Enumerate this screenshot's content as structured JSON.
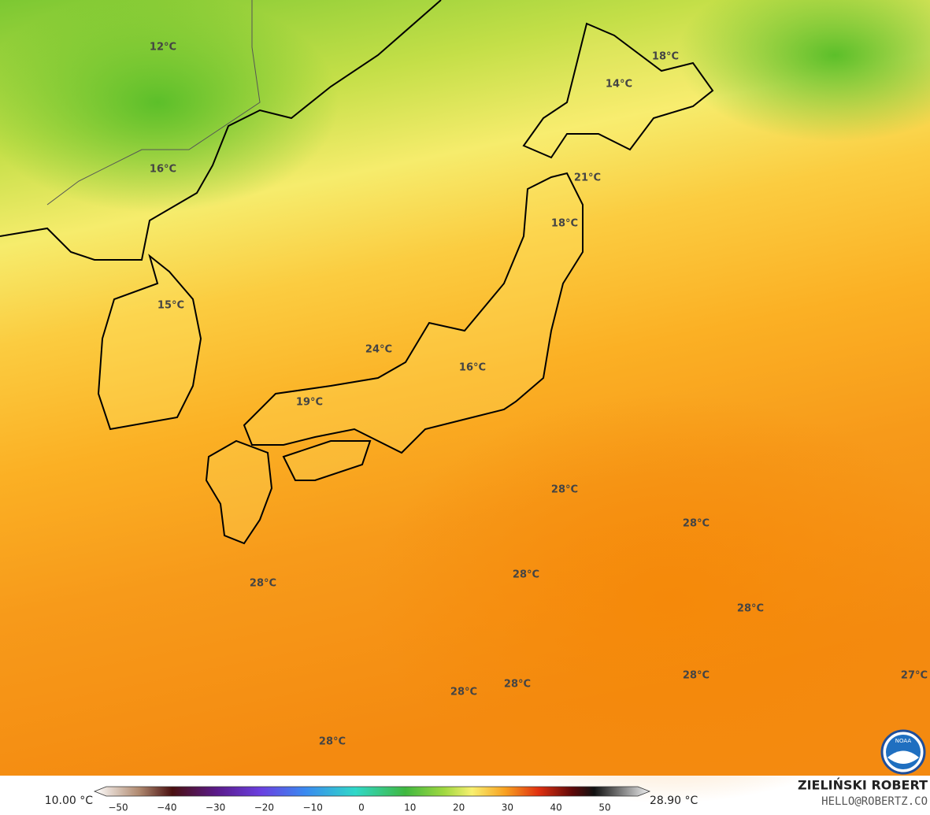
{
  "map": {
    "labels": [
      "12°C",
      "16°C",
      "15°C",
      "18°C",
      "14°C",
      "21°C",
      "18°C",
      "24°C",
      "16°C",
      "19°C",
      "28°C",
      "28°C",
      "28°C",
      "28°C",
      "28°C",
      "28°C",
      "27°C",
      "28°C",
      "28°C",
      "28°C"
    ]
  },
  "legend": {
    "min": "10.00 °C",
    "max": "28.90 °C",
    "ticks": [
      "−50",
      "−40",
      "−30",
      "−20",
      "−10",
      "0",
      "10",
      "20",
      "30",
      "40",
      "50"
    ]
  },
  "credit": {
    "name": "ZIELIŃSKI ROBERT",
    "email": "HELLO@ROBERTZ.CO"
  },
  "logo": "NOAA"
}
